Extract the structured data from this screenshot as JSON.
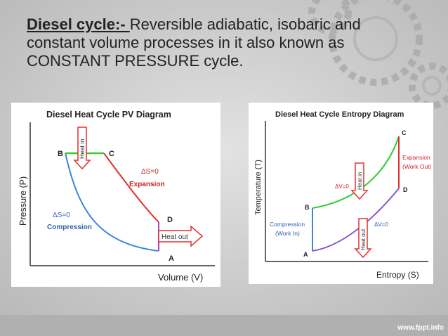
{
  "slide": {
    "title_lead": "Diesel cycle:- ",
    "title_rest": "Reversible adiabatic, isobaric and constant volume processes in it also known as CONSTANT PRESSURE cycle.",
    "credit": "www.fppt.info"
  },
  "pv_diagram": {
    "title": "Diesel Heat Cycle PV Diagram",
    "x_label": "Volume (V)",
    "y_label": "Pressure (P)",
    "points": {
      "b": "B",
      "c": "C",
      "d": "D",
      "a": "A"
    },
    "heat_in": "Heat in",
    "heat_out": "Heat out",
    "expansion_ds": "ΔS=0",
    "expansion": "Expansion",
    "compression_ds": "ΔS=0",
    "compression": "Compression"
  },
  "ts_diagram": {
    "title": "Diesel Heat Cycle Entropy Diagram",
    "x_label": "Entropy (S)",
    "y_label": "Temperature (T)",
    "points": {
      "c": "C",
      "b": "B",
      "d": "D",
      "a": "A"
    },
    "heat_in": "Heat in",
    "heat_out": "Heat out",
    "dv_top": "ΔV=0",
    "dv_bottom": "ΔV=0",
    "expansion_line1": "Expansion",
    "expansion_line2": "(Work Out)",
    "compression_line1": "Compression",
    "compression_line2": "(Work In)"
  },
  "colors": {
    "isobaric": "#33cc33",
    "isochoric_ts": "#4a7fd6",
    "compression": "#3a86e0",
    "expansion": "#e03030",
    "heat_out_pv": "#aa44cc",
    "ts_lower": "#8a55cc",
    "text_red": "#d02020",
    "text_blue": "#2c5fb8"
  }
}
